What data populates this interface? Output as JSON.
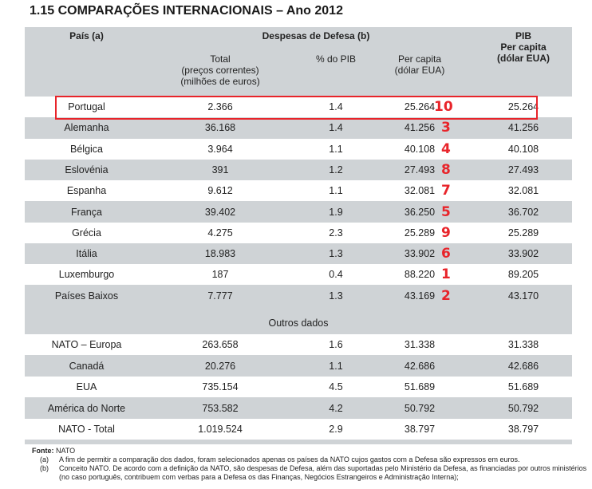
{
  "title": "1.15 COMPARAÇÕES INTERNACIONAIS – Ano 2012",
  "headers": {
    "country": "País (a)",
    "defense_group": "Despesas de Defesa (b)",
    "total": [
      "Total",
      "(preços correntes)",
      "(milhões de euros)"
    ],
    "pct_pib": "% do PIB",
    "per_capita": [
      "Per capita",
      "(dólar EUA)"
    ],
    "pib": [
      "PIB",
      "Per capita",
      "(dólar EUA)"
    ]
  },
  "rows": [
    {
      "country": "Portugal",
      "total": "2.366",
      "pct": "1.4",
      "per_capita": "25.264",
      "pib": "25.264",
      "rank": "10"
    },
    {
      "country": "Alemanha",
      "total": "36.168",
      "pct": "1.4",
      "per_capita": "41.256",
      "pib": "41.256",
      "rank": "3"
    },
    {
      "country": "Bélgica",
      "total": "3.964",
      "pct": "1.1",
      "per_capita": "40.108",
      "pib": "40.108",
      "rank": "4"
    },
    {
      "country": "Eslovénia",
      "total": "391",
      "pct": "1.2",
      "per_capita": "27.493",
      "pib": "27.493",
      "rank": "8"
    },
    {
      "country": "Espanha",
      "total": "9.612",
      "pct": "1.1",
      "per_capita": "32.081",
      "pib": "32.081",
      "rank": "7"
    },
    {
      "country": "França",
      "total": "39.402",
      "pct": "1.9",
      "per_capita": "36.250",
      "pib": "36.702",
      "rank": "5"
    },
    {
      "country": "Grécia",
      "total": "4.275",
      "pct": "2.3",
      "per_capita": "25.289",
      "pib": "25.289",
      "rank": "9"
    },
    {
      "country": "Itália",
      "total": "18.983",
      "pct": "1.3",
      "per_capita": "33.902",
      "pib": "33.902",
      "rank": "6"
    },
    {
      "country": "Luxemburgo",
      "total": "187",
      "pct": "0.4",
      "per_capita": "88.220",
      "pib": "89.205",
      "rank": "1"
    },
    {
      "country": "Países Baixos",
      "total": "7.777",
      "pct": "1.3",
      "per_capita": "43.169",
      "pib": "43.170",
      "rank": "2"
    }
  ],
  "other_label": "Outros dados",
  "other_rows": [
    {
      "country": "NATO – Europa",
      "total": "263.658",
      "pct": "1.6",
      "per_capita": "31.338",
      "pib": "31.338"
    },
    {
      "country": "Canadá",
      "total": "20.276",
      "pct": "1.1",
      "per_capita": "42.686",
      "pib": "42.686"
    },
    {
      "country": "EUA",
      "total": "735.154",
      "pct": "4.5",
      "per_capita": "51.689",
      "pib": "51.689"
    },
    {
      "country": "América do Norte",
      "total": "753.582",
      "pct": "4.2",
      "per_capita": "50.792",
      "pib": "50.792"
    },
    {
      "country": "NATO - Total",
      "total": "1.019.524",
      "pct": "2.9",
      "per_capita": "38.797",
      "pib": "38.797"
    }
  ],
  "footer": {
    "source_label": "Fonte:",
    "source": "NATO",
    "notes": [
      {
        "key": "(a)",
        "text": "A fim de permitir a comparação dos dados, foram selecionados apenas os países da NATO cujos gastos com a Defesa são expressos em euros."
      },
      {
        "key": "(b)",
        "text": "Conceito NATO. De acordo com a definição da NATO, são despesas de Defesa, além das suportadas pelo Ministério da Defesa, as financiadas por outros ministérios (no caso português, contribuem com verbas para a Defesa os das Finanças, Negócios Estrangeiros e Administração Interna);"
      }
    ]
  },
  "colors": {
    "highlight": "#e8242a",
    "table_bg": "#cfd3d6"
  }
}
